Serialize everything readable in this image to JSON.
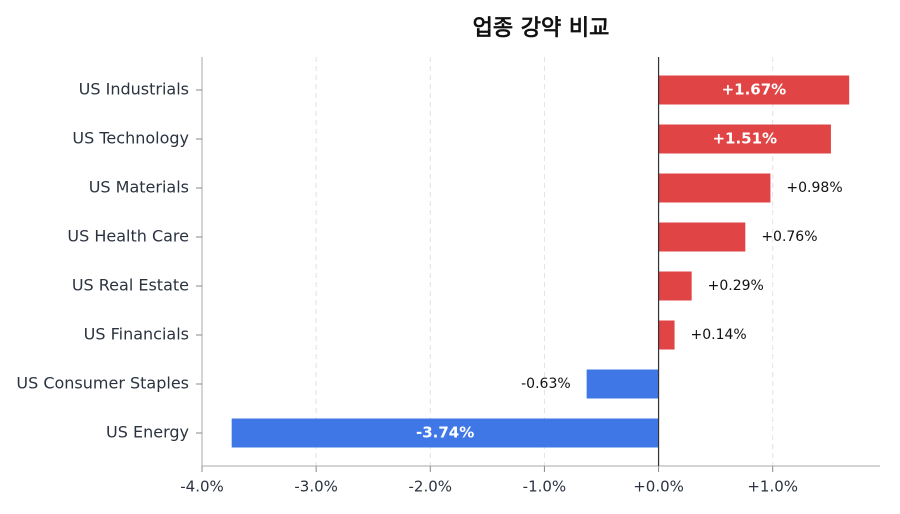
{
  "chart_data": {
    "type": "barh",
    "title": "업종 강약 비교",
    "categories": [
      "US Industrials",
      "US Technology",
      "US Materials",
      "US Health Care",
      "US Real Estate",
      "US Financials",
      "US Consumer Staples",
      "US Energy"
    ],
    "values": [
      1.67,
      1.51,
      0.98,
      0.76,
      0.29,
      0.14,
      -0.63,
      -3.74
    ],
    "value_labels": [
      "+1.67%",
      "+1.51%",
      "+0.98%",
      "+0.76%",
      "+0.29%",
      "+0.14%",
      "-0.63%",
      "-3.74%"
    ],
    "positive_color": "#e04444",
    "negative_color": "#3f78e6",
    "xlim": [
      -4.0,
      1.94
    ],
    "xticks": [
      {
        "value": -4,
        "label": "-4.0%"
      },
      {
        "value": -3,
        "label": "-3.0%"
      },
      {
        "value": -2,
        "label": "-2.0%"
      },
      {
        "value": -1,
        "label": "-1.0%"
      },
      {
        "value": 0,
        "label": "+0.0%"
      },
      {
        "value": 1,
        "label": "+1.0%"
      }
    ],
    "grid": true
  }
}
